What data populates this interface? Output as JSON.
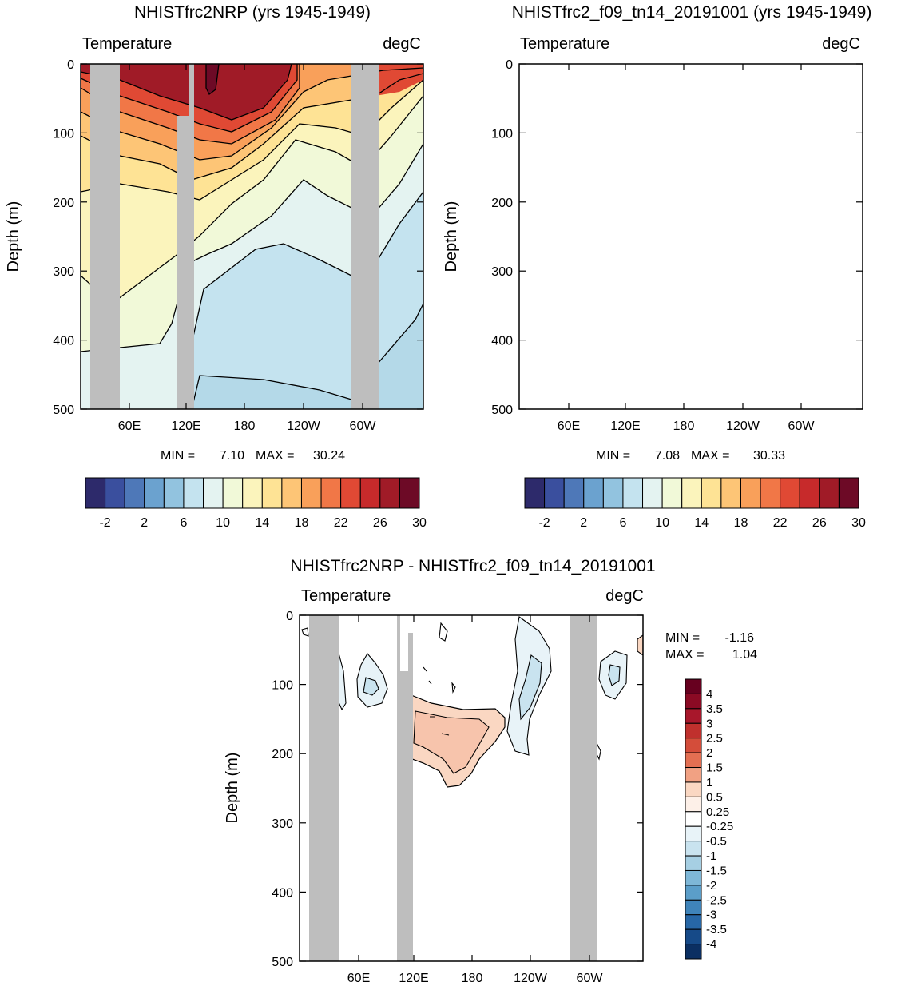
{
  "chart_data": [
    {
      "type": "heatmap",
      "title": "NHISTfrc2NRP (yrs 1945-1949)",
      "left_label": "Temperature",
      "right_label": "degC",
      "ylabel": "Depth (m)",
      "ylim": [
        0,
        500
      ],
      "y_ticks": [
        "0",
        "100",
        "200",
        "300",
        "400",
        "500"
      ],
      "x_ticks": [
        "60E",
        "120E",
        "180",
        "120W",
        "60W"
      ],
      "min_label": "MIN =",
      "min_value": "7.10",
      "max_label": "MAX =",
      "max_value": "30.24",
      "colorbar_labels": [
        "-2",
        "2",
        "6",
        "10",
        "14",
        "18",
        "22",
        "26",
        "30"
      ],
      "colorbar_colors": [
        "#2d2a6b",
        "#3a4f9e",
        "#4e78b8",
        "#6ba2cf",
        "#92c3df",
        "#c4e3ef",
        "#e4f3f1",
        "#f1f9d8",
        "#fbf4bc",
        "#fee395",
        "#fdc576",
        "#f9a05a",
        "#f17747",
        "#e04934",
        "#c72a2b",
        "#a01b27",
        "#6d0a26"
      ]
    },
    {
      "type": "heatmap",
      "title": "NHISTfrc2_f09_tn14_20191001 (yrs 1945-1949)",
      "left_label": "Temperature",
      "right_label": "degC",
      "ylabel": "Depth (m)",
      "ylim": [
        0,
        500
      ],
      "y_ticks": [
        "0",
        "100",
        "200",
        "300",
        "400",
        "500"
      ],
      "x_ticks": [
        "60E",
        "120E",
        "180",
        "120W",
        "60W"
      ],
      "min_label": "MIN =",
      "min_value": "7.08",
      "max_label": "MAX =",
      "max_value": "30.33",
      "colorbar_labels": [
        "-2",
        "2",
        "6",
        "10",
        "14",
        "18",
        "22",
        "26",
        "30"
      ],
      "colorbar_colors": [
        "#2d2a6b",
        "#3a4f9e",
        "#4e78b8",
        "#6ba2cf",
        "#92c3df",
        "#c4e3ef",
        "#e4f3f1",
        "#f1f9d8",
        "#fbf4bc",
        "#fee395",
        "#fdc576",
        "#f9a05a",
        "#f17747",
        "#e04934",
        "#c72a2b",
        "#a01b27",
        "#6d0a26"
      ]
    },
    {
      "type": "heatmap",
      "title": "NHISTfrc2NRP - NHISTfrc2_f09_tn14_20191001",
      "left_label": "Temperature",
      "right_label": "degC",
      "ylabel": "Depth (m)",
      "ylim": [
        0,
        500
      ],
      "y_ticks": [
        "0",
        "100",
        "200",
        "300",
        "400",
        "500"
      ],
      "x_ticks": [
        "60E",
        "120E",
        "180",
        "120W",
        "60W"
      ],
      "min_label": "MIN =",
      "min_value": "-1.16",
      "max_label": "MAX =",
      "max_value": "1.04",
      "colorbar_labels": [
        "4",
        "3.5",
        "3",
        "2.5",
        "2",
        "1.5",
        "1",
        "0.5",
        "0.25",
        "-0.25",
        "-0.5",
        "-1",
        "-1.5",
        "-2",
        "-2.5",
        "-3",
        "-3.5",
        "-4"
      ],
      "colorbar_colors": [
        "#67001f",
        "#8b0a24",
        "#a8172b",
        "#c0302d",
        "#d44d3a",
        "#e36f52",
        "#f1a183",
        "#fad7c2",
        "#fdf0e8",
        "#ffffff",
        "#e8f3f8",
        "#c9e3ef",
        "#a6cfe3",
        "#7eb7d7",
        "#5b9ec9",
        "#3f84ba",
        "#2767a6",
        "#164a88",
        "#0b2f62"
      ]
    }
  ]
}
